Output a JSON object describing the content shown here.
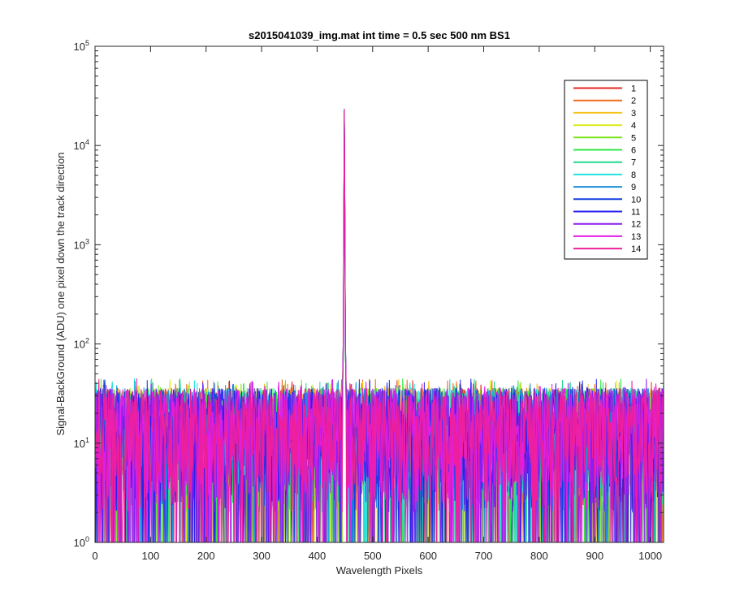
{
  "chart_data": {
    "type": "line",
    "title": "s2015041039_img.mat int time = 0.5 sec  500 nm BS1",
    "xlabel": "Wavelength Pixels",
    "ylabel": "Signal-BackGround (ADU) one pixel down the track direction",
    "xlim": [
      0,
      1024
    ],
    "ylim": [
      1,
      100000
    ],
    "yscale": "log",
    "x_ticks": [
      "0",
      "100",
      "200",
      "300",
      "400",
      "500",
      "600",
      "700",
      "800",
      "900",
      "1000"
    ],
    "y_ticks": [
      {
        "base": "10",
        "exp": "0"
      },
      {
        "base": "10",
        "exp": "1"
      },
      {
        "base": "10",
        "exp": "2"
      },
      {
        "base": "10",
        "exp": "3"
      },
      {
        "base": "10",
        "exp": "4"
      },
      {
        "base": "10",
        "exp": "5"
      }
    ],
    "grid": false,
    "legend_position": "top-right",
    "noise_floor": {
      "min": 1,
      "typical_max": 40
    },
    "peak": {
      "x": 449,
      "y": 23000
    },
    "series": [
      {
        "name": "1",
        "color": "#e6261f"
      },
      {
        "name": "2",
        "color": "#f06b1a"
      },
      {
        "name": "3",
        "color": "#f7c21d"
      },
      {
        "name": "4",
        "color": "#d8ec1c"
      },
      {
        "name": "5",
        "color": "#7de51c"
      },
      {
        "name": "6",
        "color": "#2ee843"
      },
      {
        "name": "7",
        "color": "#1fd98c"
      },
      {
        "name": "8",
        "color": "#22e2e2"
      },
      {
        "name": "9",
        "color": "#1b8fd9"
      },
      {
        "name": "10",
        "color": "#1240e0"
      },
      {
        "name": "11",
        "color": "#2a1ff0"
      },
      {
        "name": "12",
        "color": "#8a1ff0"
      },
      {
        "name": "13",
        "color": "#e21fe6"
      },
      {
        "name": "14",
        "color": "#ee1f9a"
      }
    ]
  }
}
